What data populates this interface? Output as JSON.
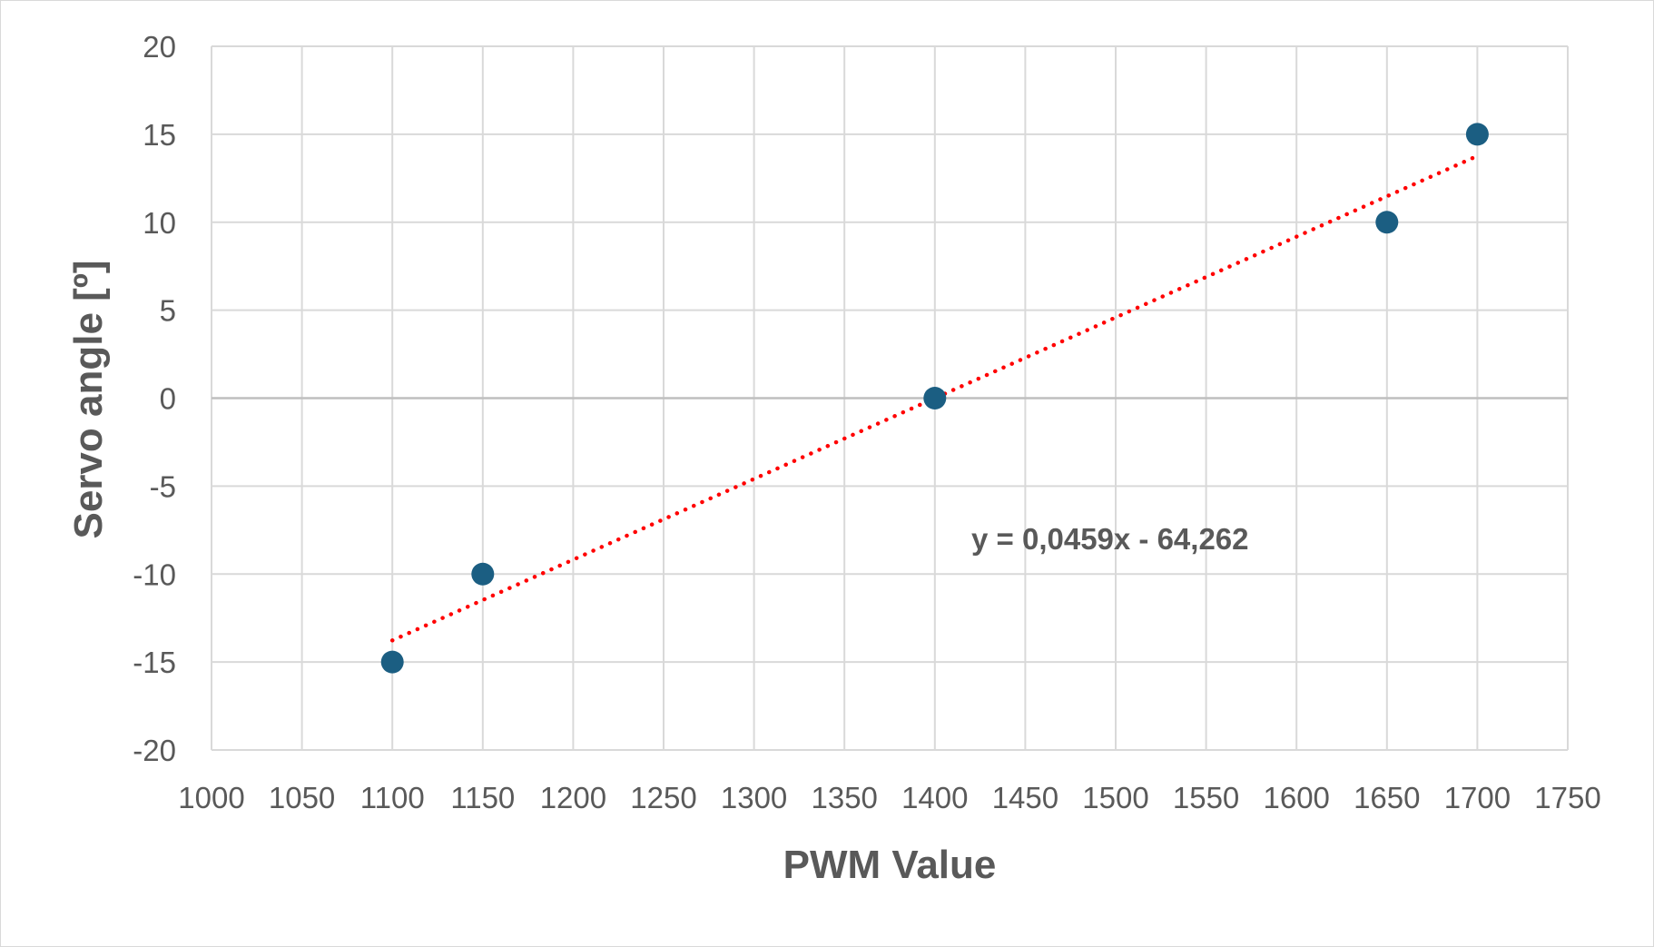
{
  "chart_data": {
    "type": "scatter",
    "xlabel": "PWM Value",
    "ylabel": "Servo angle  [º]",
    "xlim": [
      1000,
      1750
    ],
    "ylim": [
      -20,
      20
    ],
    "x_ticks": [
      "1000",
      "1050",
      "1100",
      "1150",
      "1200",
      "1250",
      "1300",
      "1350",
      "1400",
      "1450",
      "1500",
      "1550",
      "1600",
      "1650",
      "1700",
      "1750"
    ],
    "y_ticks": [
      "20",
      "15",
      "10",
      "5",
      "0",
      "-5",
      "-10",
      "-15",
      "-20"
    ],
    "grid": true,
    "series": [
      {
        "x": [
          1100,
          1150,
          1400,
          1650,
          1700
        ],
        "y": [
          -15,
          -10,
          0,
          10,
          15
        ],
        "color": "#1b5e82"
      }
    ],
    "trendline": {
      "slope": 0.0459,
      "intercept": -64.262,
      "x_range": [
        1100,
        1700
      ],
      "color": "#ff0000",
      "style": "dotted",
      "equation_label": "y = 0,0459x - 64,262"
    }
  }
}
